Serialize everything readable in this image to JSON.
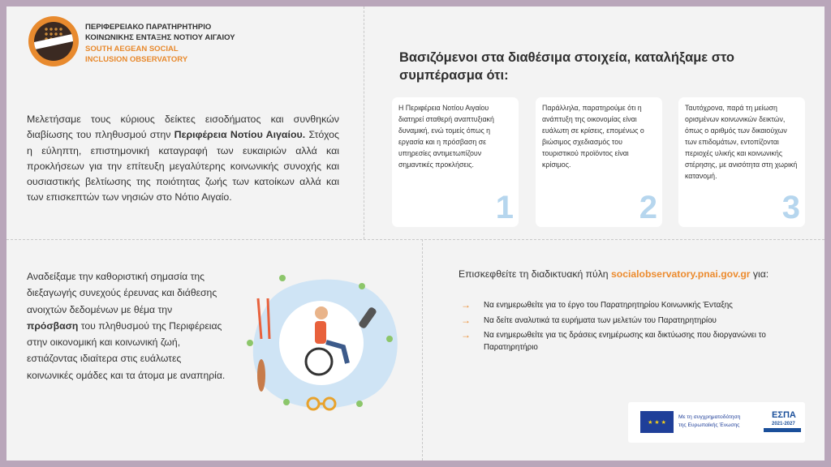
{
  "header": {
    "org_name_gr": [
      "ΠΕΡΙΦΕΡΕΙΑΚΟ ΠΑΡΑΤΗΡΗΤΗΡΙΟ",
      "ΚΟΙΝΩΝΙΚΗΣ ΕΝΤΑΞΗΣ ΝΟΤΙΟΥ ΑΙΓΑΙΟΥ"
    ],
    "org_name_en": [
      "SOUTH AEGEAN SOCIAL",
      "INCLUSION OBSERVATORY"
    ]
  },
  "intro": {
    "before": "Μελετήσαμε τους κύριους δείκτες εισοδήματος και συνθηκών διαβίωσης του πληθυσμού στην ",
    "bold": "Περιφέρεια Νοτίου Αιγαίου.",
    "after": " Στόχος η εύληπτη, επιστημονική καταγραφή των ευκαιριών αλλά και προκλήσεων για την επίτευξη μεγαλύτερης κοινωνικής συνοχής και ουσιαστικής βελτίωσης της ποιότητας ζωής των κατοίκων αλλά και των επισκεπτών των νησιών στο Νότιο Αιγαίο."
  },
  "conclusions": {
    "headline": "Βασιζόμενοι στα διαθέσιμα στοιχεία, καταλήξαμε στο συμπέρασμα ότι:",
    "cards": [
      {
        "number": "1",
        "text": "Η Περιφέρεια Νοτίου Αιγαίου διατηρεί σταθερή αναπτυξιακή δυναμική, ενώ τομείς όπως η εργασία και η πρόσβαση σε υπηρεσίες αντιμετωπίζουν σημαντικές προκλήσεις."
      },
      {
        "number": "2",
        "text": "Παράλληλα, παρατηρούμε ότι η ανάπτυξη της οικονομίας είναι ευάλωτη σε κρίσεις, επομένως ο βιώσιμος σχεδιασμός του τουριστικού προϊόντος είναι κρίσιμος."
      },
      {
        "number": "3",
        "text": "Ταυτόχρονα, παρά τη μείωση ορισμένων κοινωνικών δεικτών, όπως ο αριθμός των δικαιούχων των επιδομάτων, εντοπίζονται περιοχές υλικής και κοινωνικής στέρησης, με ανισότητα στη χωρική κατανομή."
      }
    ]
  },
  "access": {
    "before": "Αναδείξαμε την καθοριστική σημασία της διεξαγωγής συνεχούς έρευνας και διάθεσης ανοιχτών δεδομένων με θέμα την ",
    "bold": "πρόσβαση",
    "after": " του πληθυσμού της Περιφέρειας στην οικονομική και κοινωνική ζωή, εστιάζοντας ιδιαίτερα στις ευάλωτες κοινωνικές ομάδες και τα άτομα με αναπηρία."
  },
  "visit": {
    "before": "Επισκεφθείτε τη διαδικτυακή πύλη ",
    "url": "socialobservatory.pnai.gov.gr",
    "after": " για:",
    "arrow": "→",
    "items": [
      "Να ενημερωθείτε για το έργο του Παρατηρητηρίου Κοινωνικής Ένταξης",
      "Να δείτε αναλυτικά τα ευρήματα των μελετών του Παρατηρητηρίου",
      "Να ενημερωθείτε για τις δράσεις ενημέρωσης και δικτύωσης που διοργανώνει το Παρατηρητήριο"
    ]
  },
  "footer": {
    "eu_text": [
      "Με τη συγχρηματοδότηση",
      "της Ευρωπαϊκής Ένωσης"
    ],
    "espa": "ΕΣΠΑ",
    "espa_years": "2021-2027"
  },
  "colors": {
    "accent": "#ec8b2e",
    "frame": "#b9a6ba",
    "number_blue": "#b6d6ee",
    "eu_blue": "#1f3f99"
  }
}
